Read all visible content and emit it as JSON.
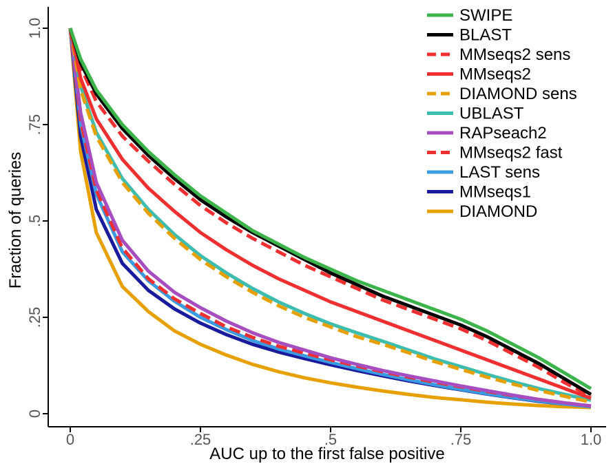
{
  "chart_data": {
    "type": "line",
    "title": "",
    "xlabel": "AUC up to the first false positive",
    "ylabel": "Fraction of queries",
    "xlim": [
      0,
      1
    ],
    "ylim": [
      0,
      1
    ],
    "x_ticks": [
      0,
      0.25,
      0.5,
      0.75,
      1.0
    ],
    "x_tick_labels": [
      "0",
      ".25",
      ".5",
      ".75",
      "1.0"
    ],
    "y_ticks": [
      0,
      0.25,
      0.5,
      0.75,
      1.0
    ],
    "y_tick_labels": [
      "0",
      ".25",
      ".5",
      ".75",
      "1.0"
    ],
    "grid": false,
    "legend_position": "top-right",
    "x": [
      0,
      0.02,
      0.05,
      0.1,
      0.15,
      0.2,
      0.25,
      0.3,
      0.35,
      0.4,
      0.45,
      0.5,
      0.55,
      0.6,
      0.65,
      0.7,
      0.75,
      0.8,
      0.85,
      0.9,
      0.95,
      1.0
    ],
    "series": [
      {
        "name": "SWIPE",
        "color": "#3cb44b",
        "dash": "solid",
        "values": [
          1.0,
          0.92,
          0.84,
          0.75,
          0.68,
          0.62,
          0.565,
          0.52,
          0.475,
          0.44,
          0.405,
          0.375,
          0.345,
          0.32,
          0.295,
          0.27,
          0.245,
          0.215,
          0.18,
          0.145,
          0.105,
          0.065
        ]
      },
      {
        "name": "BLAST",
        "color": "#000000",
        "dash": "solid",
        "values": [
          1.0,
          0.91,
          0.83,
          0.74,
          0.67,
          0.61,
          0.555,
          0.51,
          0.47,
          0.435,
          0.4,
          0.365,
          0.335,
          0.305,
          0.28,
          0.255,
          0.23,
          0.2,
          0.165,
          0.13,
          0.09,
          0.05
        ]
      },
      {
        "name": "MMseqs2 sens",
        "color": "#f03030",
        "dash": "dash",
        "values": [
          1.0,
          0.9,
          0.81,
          0.72,
          0.655,
          0.595,
          0.54,
          0.495,
          0.455,
          0.42,
          0.385,
          0.355,
          0.325,
          0.295,
          0.27,
          0.245,
          0.22,
          0.19,
          0.155,
          0.12,
          0.08,
          0.045
        ]
      },
      {
        "name": "MMseqs2",
        "color": "#f03030",
        "dash": "solid",
        "values": [
          1.0,
          0.87,
          0.765,
          0.66,
          0.585,
          0.525,
          0.47,
          0.425,
          0.385,
          0.35,
          0.32,
          0.29,
          0.265,
          0.24,
          0.215,
          0.19,
          0.165,
          0.14,
          0.115,
          0.09,
          0.065,
          0.04
        ]
      },
      {
        "name": "DIAMOND sens",
        "color": "#e6a000",
        "dash": "dash",
        "values": [
          1.0,
          0.84,
          0.72,
          0.6,
          0.52,
          0.455,
          0.4,
          0.355,
          0.315,
          0.28,
          0.25,
          0.225,
          0.2,
          0.18,
          0.158,
          0.135,
          0.115,
          0.095,
          0.077,
          0.06,
          0.045,
          0.03
        ]
      },
      {
        "name": "UBLAST",
        "color": "#3dbdb0",
        "dash": "solid",
        "values": [
          1.0,
          0.85,
          0.73,
          0.61,
          0.53,
          0.465,
          0.41,
          0.365,
          0.325,
          0.29,
          0.26,
          0.233,
          0.21,
          0.188,
          0.165,
          0.142,
          0.122,
          0.102,
          0.083,
          0.065,
          0.05,
          0.035
        ]
      },
      {
        "name": "RAPseach2",
        "color": "#a64dbf",
        "dash": "solid",
        "values": [
          1.0,
          0.78,
          0.6,
          0.45,
          0.37,
          0.315,
          0.275,
          0.24,
          0.21,
          0.185,
          0.165,
          0.145,
          0.128,
          0.112,
          0.098,
          0.085,
          0.072,
          0.06,
          0.048,
          0.037,
          0.028,
          0.02
        ]
      },
      {
        "name": "MMseqs2 fast",
        "color": "#f03030",
        "dash": "dash",
        "values": [
          1.0,
          0.76,
          0.58,
          0.43,
          0.35,
          0.298,
          0.26,
          0.225,
          0.198,
          0.175,
          0.157,
          0.14,
          0.124,
          0.109,
          0.095,
          0.082,
          0.07,
          0.058,
          0.047,
          0.037,
          0.028,
          0.02
        ]
      },
      {
        "name": "LAST sens",
        "color": "#3a9be0",
        "dash": "solid",
        "values": [
          1.0,
          0.75,
          0.57,
          0.42,
          0.345,
          0.292,
          0.25,
          0.218,
          0.19,
          0.168,
          0.15,
          0.133,
          0.117,
          0.102,
          0.088,
          0.075,
          0.063,
          0.052,
          0.042,
          0.033,
          0.025,
          0.018
        ]
      },
      {
        "name": "MMseqs1",
        "color": "#1a1a9c",
        "dash": "solid",
        "values": [
          1.0,
          0.72,
          0.53,
          0.39,
          0.32,
          0.272,
          0.235,
          0.205,
          0.18,
          0.16,
          0.143,
          0.127,
          0.112,
          0.098,
          0.085,
          0.073,
          0.062,
          0.051,
          0.041,
          0.032,
          0.025,
          0.02
        ]
      },
      {
        "name": "DIAMOND",
        "color": "#e6a000",
        "dash": "solid",
        "values": [
          1.0,
          0.68,
          0.47,
          0.33,
          0.265,
          0.215,
          0.18,
          0.152,
          0.128,
          0.109,
          0.093,
          0.08,
          0.069,
          0.059,
          0.05,
          0.042,
          0.036,
          0.03,
          0.025,
          0.021,
          0.018,
          0.016
        ]
      }
    ]
  }
}
